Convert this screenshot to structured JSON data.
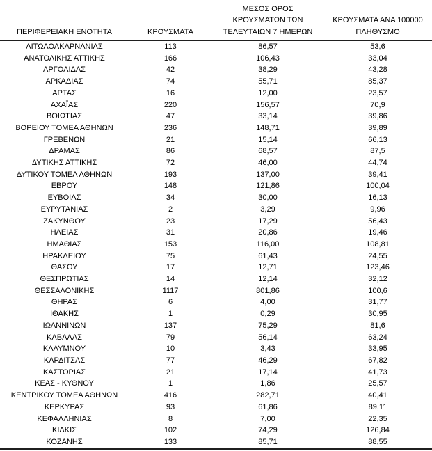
{
  "colors": {
    "background": "#ffffff",
    "text": "#000000",
    "rule": "#1f1f1f"
  },
  "table": {
    "columns": [
      {
        "key": "region",
        "label": "ΠΕΡΙΦΕΡΕΙΑΚΗ ΕΝΟΤΗΤΑ"
      },
      {
        "key": "cases",
        "label": "ΚΡΟΥΣΜΑΤΑ"
      },
      {
        "key": "avg7",
        "label": "ΜΕΣΟΣ ΟΡΟΣ\nΚΡΟΥΣΜΑΤΩΝ ΤΩΝ\nΤΕΛΕΥΤΑΙΩΝ 7 ΗΜΕΡΩΝ"
      },
      {
        "key": "per100k",
        "label": "ΚΡΟΥΣΜΑΤΑ ΑΝΑ 100000\nΠΛΗΘΥΣΜΟ"
      }
    ],
    "rows": [
      [
        "ΑΙΤΩΛΟΑΚΑΡΝΑΝΙΑΣ",
        "113",
        "86,57",
        "53,6"
      ],
      [
        "ΑΝΑΤΟΛΙΚΗΣ ΑΤΤΙΚΗΣ",
        "166",
        "106,43",
        "33,04"
      ],
      [
        "ΑΡΓΟΛΙΔΑΣ",
        "42",
        "38,29",
        "43,28"
      ],
      [
        "ΑΡΚΑΔΙΑΣ",
        "74",
        "55,71",
        "85,37"
      ],
      [
        "ΑΡΤΑΣ",
        "16",
        "12,00",
        "23,57"
      ],
      [
        "ΑΧΑΪΑΣ",
        "220",
        "156,57",
        "70,9"
      ],
      [
        "ΒΟΙΩΤΙΑΣ",
        "47",
        "33,14",
        "39,86"
      ],
      [
        "ΒΟΡΕΙΟΥ ΤΟΜΕΑ ΑΘΗΝΩΝ",
        "236",
        "148,71",
        "39,89"
      ],
      [
        "ΓΡΕΒΕΝΩΝ",
        "21",
        "15,14",
        "66,13"
      ],
      [
        "ΔΡΑΜΑΣ",
        "86",
        "68,57",
        "87,5"
      ],
      [
        "ΔΥΤΙΚΗΣ ΑΤΤΙΚΗΣ",
        "72",
        "46,00",
        "44,74"
      ],
      [
        "ΔΥΤΙΚΟΥ ΤΟΜΕΑ ΑΘΗΝΩΝ",
        "193",
        "137,00",
        "39,41"
      ],
      [
        "ΕΒΡΟΥ",
        "148",
        "121,86",
        "100,04"
      ],
      [
        "ΕΥΒΟΙΑΣ",
        "34",
        "30,00",
        "16,13"
      ],
      [
        "ΕΥΡΥΤΑΝΙΑΣ",
        "2",
        "3,29",
        "9,96"
      ],
      [
        "ΖΑΚΥΝΘΟΥ",
        "23",
        "17,29",
        "56,43"
      ],
      [
        "ΗΛΕΙΑΣ",
        "31",
        "20,86",
        "19,46"
      ],
      [
        "ΗΜΑΘΙΑΣ",
        "153",
        "116,00",
        "108,81"
      ],
      [
        "ΗΡΑΚΛΕΙΟΥ",
        "75",
        "61,43",
        "24,55"
      ],
      [
        "ΘΑΣΟΥ",
        "17",
        "12,71",
        "123,46"
      ],
      [
        "ΘΕΣΠΡΩΤΙΑΣ",
        "14",
        "12,14",
        "32,12"
      ],
      [
        "ΘΕΣΣΑΛΟΝΙΚΗΣ",
        "1117",
        "801,86",
        "100,6"
      ],
      [
        "ΘΗΡΑΣ",
        "6",
        "4,00",
        "31,77"
      ],
      [
        "ΙΘΑΚΗΣ",
        "1",
        "0,29",
        "30,95"
      ],
      [
        "ΙΩΑΝΝΙΝΩΝ",
        "137",
        "75,29",
        "81,6"
      ],
      [
        "ΚΑΒΑΛΑΣ",
        "79",
        "56,14",
        "63,24"
      ],
      [
        "ΚΑΛΥΜΝΟΥ",
        "10",
        "3,43",
        "33,95"
      ],
      [
        "ΚΑΡΔΙΤΣΑΣ",
        "77",
        "46,29",
        "67,82"
      ],
      [
        "ΚΑΣΤΟΡΙΑΣ",
        "21",
        "17,14",
        "41,73"
      ],
      [
        "ΚΕΑΣ - ΚΥΘΝΟΥ",
        "1",
        "1,86",
        "25,57"
      ],
      [
        "ΚΕΝΤΡΙΚΟΥ ΤΟΜΕΑ ΑΘΗΝΩΝ",
        "416",
        "282,71",
        "40,41"
      ],
      [
        "ΚΕΡΚΥΡΑΣ",
        "93",
        "61,86",
        "89,11"
      ],
      [
        "ΚΕΦΑΛΛΗΝΙΑΣ",
        "8",
        "7,00",
        "22,35"
      ],
      [
        "ΚΙΛΚΙΣ",
        "102",
        "74,29",
        "126,84"
      ],
      [
        "ΚΟΖΑΝΗΣ",
        "133",
        "85,71",
        "88,55"
      ]
    ]
  }
}
